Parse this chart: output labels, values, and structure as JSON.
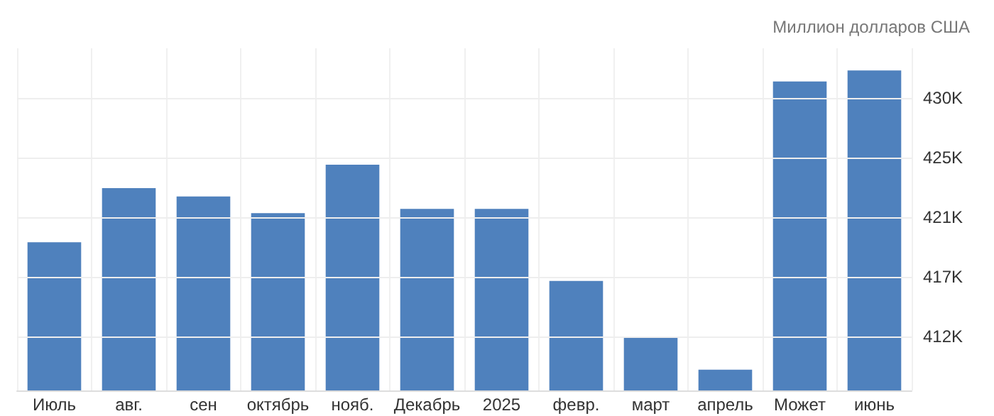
{
  "chart_data": {
    "type": "bar",
    "ylabel": "Миллион долларов США",
    "categories": [
      "Июль",
      "авг.",
      "сен",
      "октябрь",
      "нояб.",
      "Декабрь",
      "2025",
      "февр.",
      "март",
      "апрель",
      "Может",
      "июнь"
    ],
    "values": [
      419.2,
      423.1,
      422.5,
      421.3,
      424.8,
      421.6,
      421.6,
      416.4,
      412.4,
      410.0,
      430.8,
      431.6
    ],
    "color": "#4f81bd",
    "ylim": [
      408.5,
      433.2
    ],
    "yticks": [
      {
        "value": 412.4,
        "label": "412K"
      },
      {
        "value": 416.7,
        "label": "417K"
      },
      {
        "value": 421.0,
        "label": "421K"
      },
      {
        "value": 425.3,
        "label": "425K"
      },
      {
        "value": 429.6,
        "label": "430K"
      }
    ],
    "grid": true
  }
}
